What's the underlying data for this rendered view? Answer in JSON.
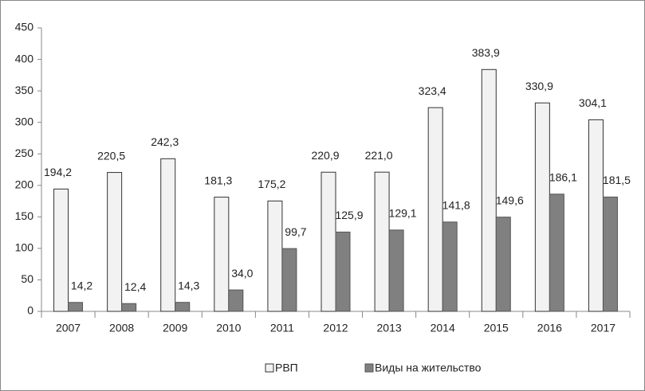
{
  "chart_data": {
    "type": "bar",
    "categories": [
      "2007",
      "2008",
      "2009",
      "2010",
      "2011",
      "2012",
      "2013",
      "2014",
      "2015",
      "2016",
      "2017"
    ],
    "series": [
      {
        "name": "РВП",
        "color": "#f2f2f2",
        "values": [
          194.2,
          220.5,
          242.3,
          181.3,
          175.2,
          220.9,
          221.0,
          323.4,
          383.9,
          330.9,
          304.1
        ],
        "value_labels": [
          "194,2",
          "220,5",
          "242,3",
          "181,3",
          "175,2",
          "220,9",
          "221,0",
          "323,4",
          "383,9",
          "330,9",
          "304,1"
        ]
      },
      {
        "name": "Виды на жительство",
        "color": "#808080",
        "values": [
          14.2,
          12.4,
          14.3,
          34.0,
          99.7,
          125.9,
          129.1,
          141.8,
          149.6,
          186.1,
          181.5
        ],
        "value_labels": [
          "14,2",
          "12,4",
          "14,3",
          "34,0",
          "99,7",
          "125,9",
          "129,1",
          "141,8",
          "149,6",
          "186,1",
          "181,5"
        ]
      }
    ],
    "ylim": [
      0,
      450
    ],
    "yticks": [
      0,
      50,
      100,
      150,
      200,
      250,
      300,
      350,
      400,
      450
    ],
    "grid": false,
    "legend": "bottom"
  }
}
